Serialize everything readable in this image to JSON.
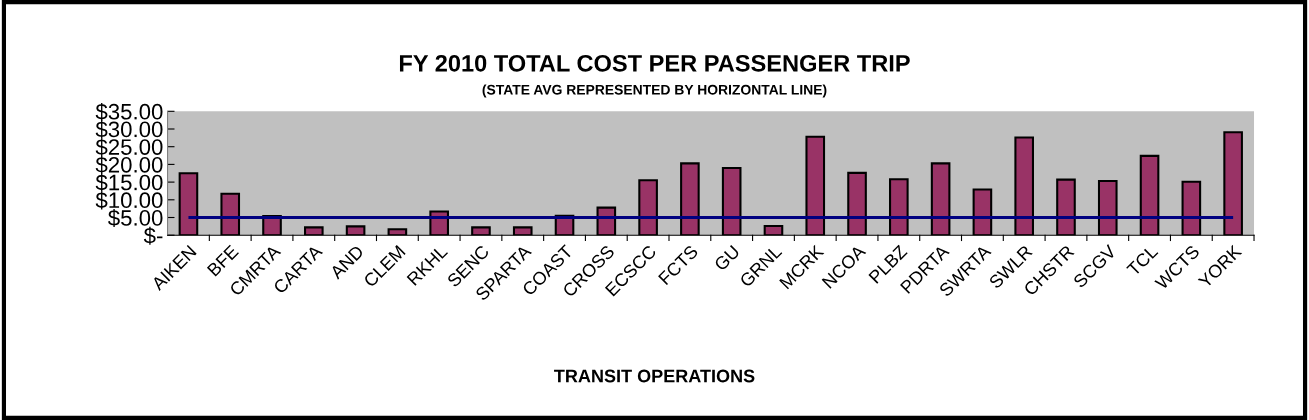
{
  "chart_data": {
    "type": "bar",
    "title": "FY 2010 TOTAL COST PER PASSENGER TRIP",
    "subtitle": "(STATE AVG REPRESENTED BY HORIZONTAL LINE)",
    "xlabel": "TRANSIT OPERATIONS",
    "categories": [
      "AIKEN",
      "BFE",
      "CMRTA",
      "CARTA",
      "AND",
      "CLEM",
      "RKHL",
      "SENC",
      "SPARTA",
      "COAST",
      "CROSS",
      "ECSCC",
      "FCTS",
      "GU",
      "GRNL",
      "MCRK",
      "NCOA",
      "PLBZ",
      "PDRTA",
      "SWRTA",
      "SWLR",
      "CHSTR",
      "SCGV",
      "TCL",
      "WCTS",
      "YORK"
    ],
    "values": [
      17.5,
      11.7,
      5.4,
      2.2,
      2.5,
      1.7,
      6.7,
      2.2,
      2.2,
      5.5,
      7.8,
      15.5,
      20.3,
      19.0,
      2.6,
      27.8,
      17.6,
      15.8,
      20.3,
      12.9,
      27.6,
      15.7,
      15.3,
      22.4,
      15.1,
      29.1
    ],
    "color": "#993366",
    "ylim": [
      0,
      35
    ],
    "yticks": [
      {
        "value": 0,
        "label": "$-"
      },
      {
        "value": 5,
        "label": "$5.00"
      },
      {
        "value": 10,
        "label": "$10.00"
      },
      {
        "value": 15,
        "label": "$15.00"
      },
      {
        "value": 20,
        "label": "$20.00"
      },
      {
        "value": 25,
        "label": "$25.00"
      },
      {
        "value": 30,
        "label": "$30.00"
      },
      {
        "value": 35,
        "label": "$35.00"
      }
    ],
    "ref_lines": [
      {
        "axis": "y",
        "value": 5.0,
        "label": null,
        "color": "#000080",
        "line_style": "solid"
      }
    ],
    "grid": false,
    "legend": false
  }
}
